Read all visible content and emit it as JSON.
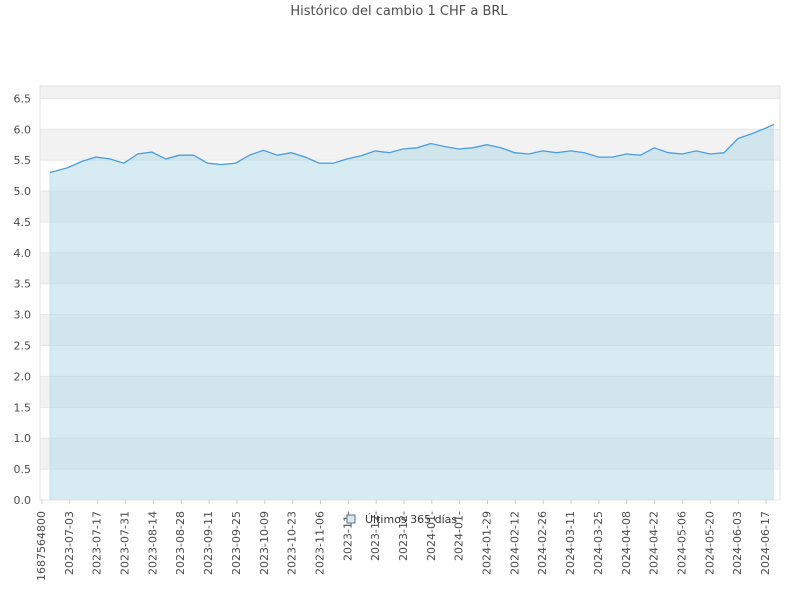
{
  "chart_data": {
    "type": "area",
    "title": "Histórico del cambio 1 CHF a BRL",
    "xlabel": "",
    "ylabel": "",
    "ylim": [
      0,
      6.7
    ],
    "yticks": [
      "0.0",
      "0.5",
      "1.0",
      "1.5",
      "2.0",
      "2.5",
      "3.0",
      "3.5",
      "4.0",
      "4.5",
      "5.0",
      "5.5",
      "6.0",
      "6.5"
    ],
    "xticks": [
      "1687564800",
      "2023-07-03",
      "2023-07-17",
      "2023-07-31",
      "2023-08-14",
      "2023-08-28",
      "2023-09-11",
      "2023-09-25",
      "2023-10-09",
      "2023-10-23",
      "2023-11-06",
      "2023-11-",
      "2023-12-",
      "2023-12-",
      "2024-01-",
      "2024-01-",
      "2024-01-29",
      "2024-02-12",
      "2024-02-26",
      "2024-03-11",
      "2024-03-25",
      "2024-04-08",
      "2024-04-22",
      "2024-05-06",
      "2024-05-20",
      "2024-06-03",
      "2024-06-17"
    ],
    "legend": {
      "position": "bottom-center",
      "label": "Últimos 365 días"
    },
    "grid": "horizontal bands",
    "colors": {
      "line": "#4a9ee0",
      "fill": "#add8e6",
      "band": "#f2f2f2"
    },
    "series": [
      {
        "name": "Últimos 365 días",
        "x": [
          "2023-06-24",
          "2023-07-03",
          "2023-07-10",
          "2023-07-17",
          "2023-07-24",
          "2023-07-31",
          "2023-08-07",
          "2023-08-14",
          "2023-08-21",
          "2023-08-28",
          "2023-09-04",
          "2023-09-11",
          "2023-09-18",
          "2023-09-25",
          "2023-10-02",
          "2023-10-09",
          "2023-10-16",
          "2023-10-23",
          "2023-10-30",
          "2023-11-06",
          "2023-11-13",
          "2023-11-20",
          "2023-11-27",
          "2023-12-04",
          "2023-12-11",
          "2023-12-18",
          "2023-12-25",
          "2024-01-01",
          "2024-01-08",
          "2024-01-15",
          "2024-01-22",
          "2024-01-29",
          "2024-02-05",
          "2024-02-12",
          "2024-02-19",
          "2024-02-26",
          "2024-03-04",
          "2024-03-11",
          "2024-03-18",
          "2024-03-25",
          "2024-04-01",
          "2024-04-08",
          "2024-04-15",
          "2024-04-22",
          "2024-04-29",
          "2024-05-06",
          "2024-05-13",
          "2024-05-20",
          "2024-05-27",
          "2024-06-03",
          "2024-06-10",
          "2024-06-17",
          "2024-06-21"
        ],
        "values": [
          5.3,
          5.38,
          5.48,
          5.55,
          5.52,
          5.45,
          5.6,
          5.63,
          5.52,
          5.58,
          5.58,
          5.45,
          5.43,
          5.45,
          5.58,
          5.66,
          5.58,
          5.62,
          5.55,
          5.45,
          5.45,
          5.52,
          5.57,
          5.65,
          5.62,
          5.68,
          5.7,
          5.77,
          5.72,
          5.68,
          5.7,
          5.75,
          5.7,
          5.62,
          5.6,
          5.65,
          5.62,
          5.65,
          5.62,
          5.55,
          5.55,
          5.6,
          5.58,
          5.7,
          5.62,
          5.6,
          5.65,
          5.6,
          5.62,
          5.85,
          5.93,
          6.02,
          6.08
        ]
      }
    ]
  }
}
